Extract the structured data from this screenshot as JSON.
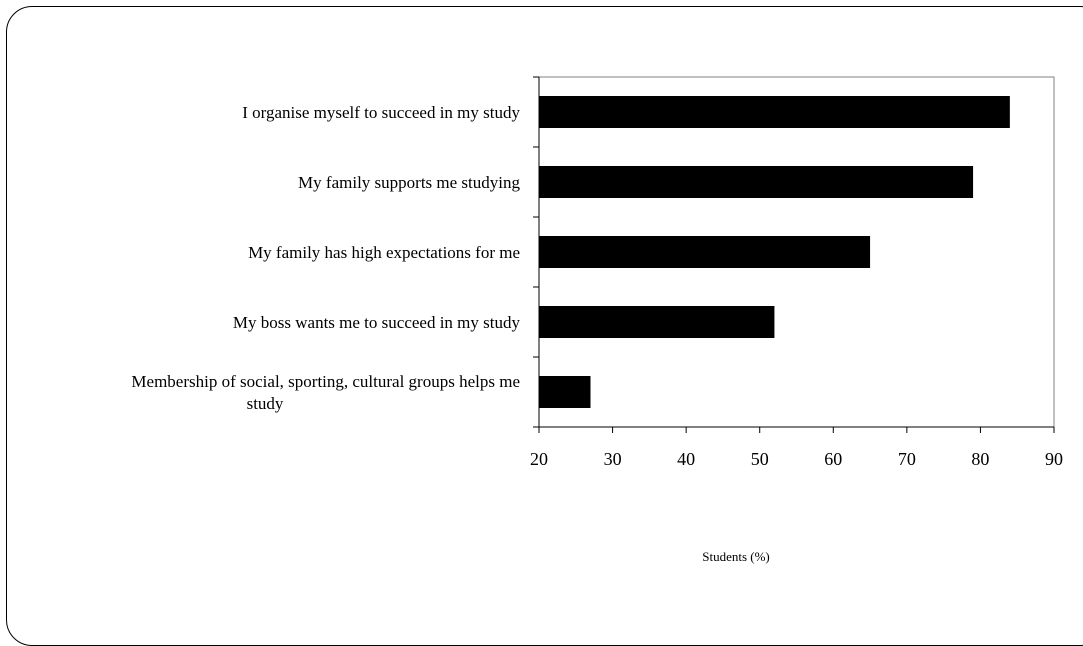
{
  "chart_data": {
    "type": "bar",
    "orientation": "horizontal",
    "categories": [
      "I organise myself to succeed in my study",
      "My family supports me studying",
      "My family has high expectations for me",
      "My boss wants me to succeed in my study",
      [
        "Membership of social, sporting, cultural groups helps me",
        "study"
      ]
    ],
    "values": [
      84,
      79,
      65,
      52,
      27
    ],
    "xlabel": "Students (%)",
    "ylabel": "",
    "title": "",
    "xlim": [
      20,
      90
    ],
    "xticks": [
      20,
      30,
      40,
      50,
      60,
      70,
      80,
      90
    ],
    "grid": false,
    "bar_color": "#000000"
  }
}
